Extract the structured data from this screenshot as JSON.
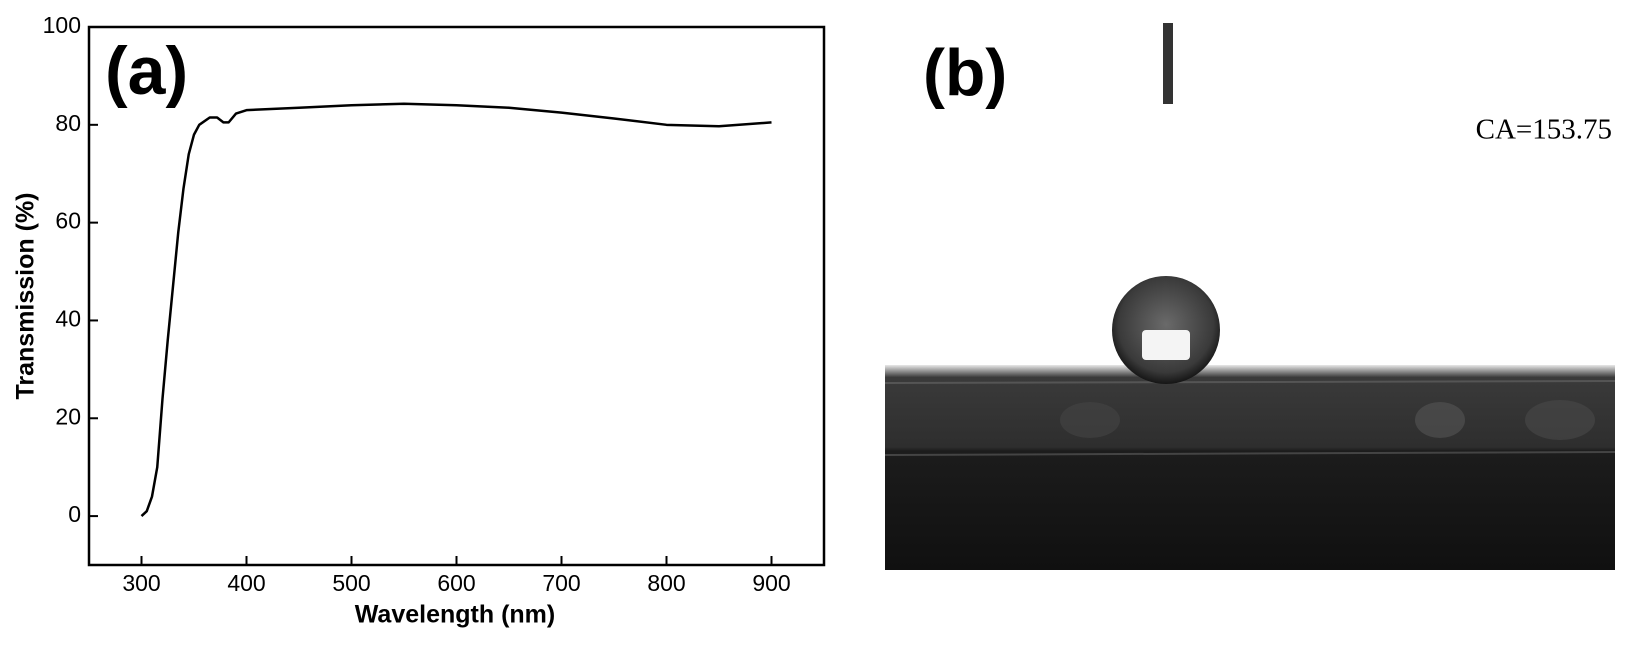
{
  "chart_data": {
    "type": "line",
    "annotation": "(a)",
    "xlabel": "Wavelength (nm)",
    "ylabel": "Transmission (%)",
    "x": [
      300,
      305,
      310,
      315,
      320,
      325,
      330,
      335,
      340,
      345,
      350,
      355,
      365,
      372,
      378,
      383,
      390,
      400,
      450,
      500,
      550,
      600,
      650,
      700,
      750,
      800,
      850,
      900
    ],
    "series": [
      {
        "name": null,
        "color": "#000000",
        "values": [
          0,
          1,
          4,
          10,
          24,
          36,
          47,
          58,
          67,
          74,
          78,
          80,
          81.5,
          81.5,
          80.5,
          80.5,
          82.3,
          83,
          83.5,
          84,
          84.3,
          84,
          83.5,
          82.5,
          81.3,
          80,
          79.7,
          80.5
        ]
      }
    ],
    "xlim": [
      250,
      950
    ],
    "xticks": [
      300,
      400,
      500,
      600,
      700,
      800,
      900
    ],
    "ylim": [
      -10,
      100
    ],
    "yticks": [
      0,
      20,
      40,
      60,
      80,
      100
    ],
    "grid": false
  },
  "photo": {
    "label": "(b)",
    "annotation": "CA=153.75"
  }
}
